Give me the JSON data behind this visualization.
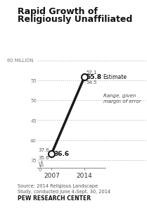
{
  "title_line1": "Rapid Growth of",
  "title_line2": "Religiously Unaffiliated",
  "years": [
    2007,
    2014
  ],
  "estimate": [
    36.6,
    55.8
  ],
  "range_high": [
    37.6,
    57.1
  ],
  "range_low": [
    35.6,
    54.5
  ],
  "yticks": [
    35,
    40,
    45,
    50,
    55,
    60
  ],
  "ytick_labels": [
    "35",
    "40",
    "45",
    "50",
    "55",
    ""
  ],
  "million_label": "60 MILLION",
  "xlim": [
    2004.0,
    2018.5
  ],
  "ylim": [
    33.0,
    61.5
  ],
  "source_text": "Source: 2014 Religious Landscape\nStudy, conducted June 4-Sept. 30, 2014",
  "footer_text": "PEW RESEARCH CENTER",
  "bg_color": "#ffffff",
  "line_color": "#1a1a1a",
  "dot_color": "#ffffff",
  "dot_edge_color": "#1a1a1a",
  "grid_color": "#aaaaaa",
  "label_2007_high": "37.6",
  "label_2007_est": "36.6",
  "label_2007_low": "35.6",
  "label_2014_high": "57.1",
  "label_2014_est": "55.8",
  "label_2014_low": "54.5",
  "annotation_estimate": "Estimate",
  "annotation_range": "Range, given\nmargin of error"
}
